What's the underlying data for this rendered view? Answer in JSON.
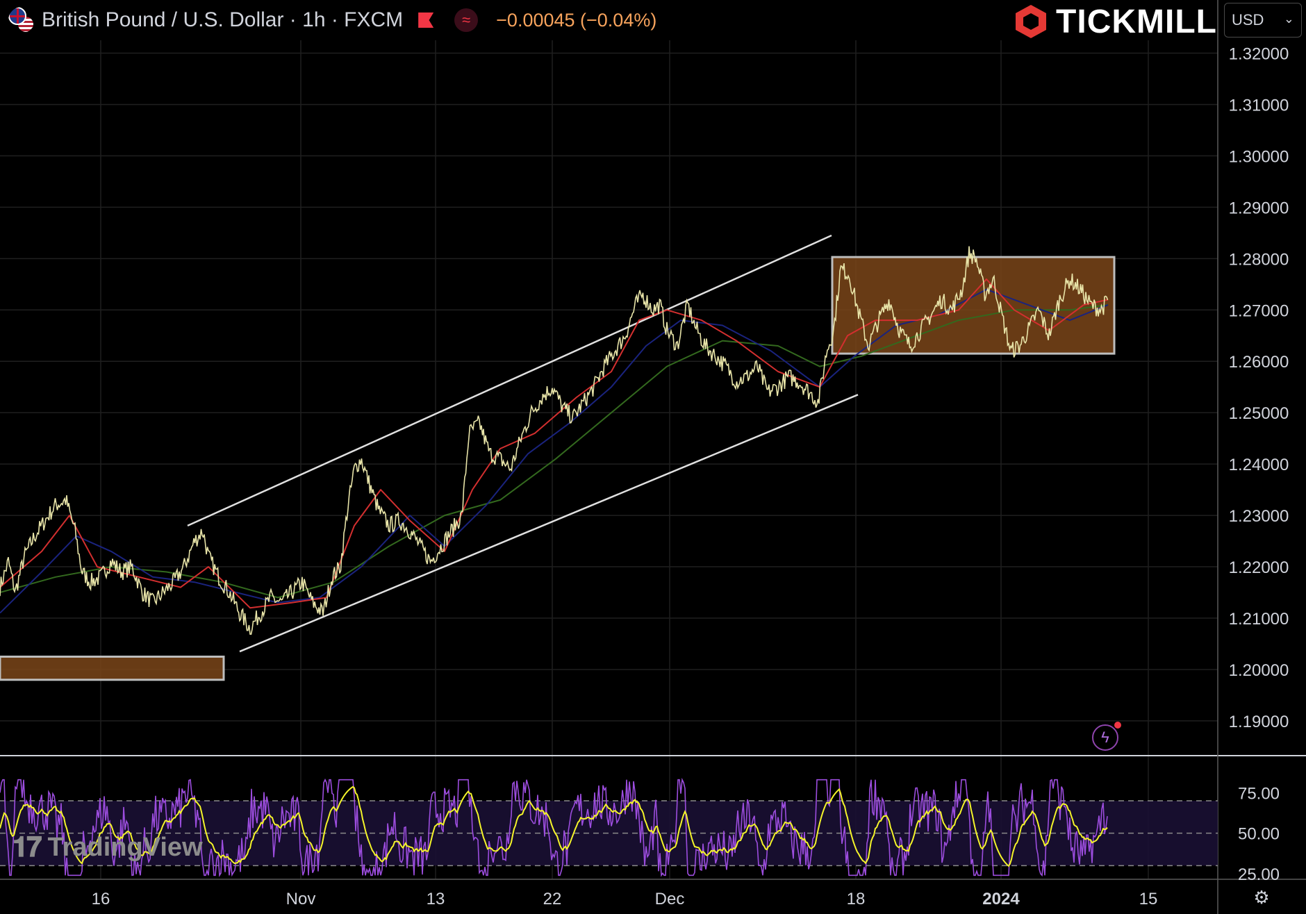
{
  "header": {
    "symbol_title": "British Pound / U.S. Dollar · 1h · FXCM",
    "change_text": "−0.00045 (−0.04%)",
    "brand": "TICKMILL",
    "currency": "USD",
    "watermark": "TradingView",
    "flag_icon": "gbp-usd-flag-icon",
    "settings_icon": "gear-icon",
    "alert_icon": "lightning-icon"
  },
  "colors": {
    "background": "#000000",
    "price": "#e8e4a8",
    "ema_fast": "#d32f2f",
    "ema_mid": "#1a237e",
    "ema_slow": "#33691e",
    "box_fill": "#7a4519",
    "box_border": "#bdbdbd",
    "rsi_line": "#9c4dde",
    "rsi_signal": "#f5f52a",
    "change_orange": "#f7a35c"
  },
  "chart_data": [
    {
      "type": "line",
      "title": "British Pound / U.S. Dollar · 1h · FXCM",
      "y_ticks": [
        "1.32000",
        "1.31000",
        "1.30000",
        "1.29000",
        "1.28000",
        "1.27000",
        "1.26000",
        "1.25000",
        "1.24000",
        "1.23000",
        "1.22000",
        "1.21000",
        "1.20000",
        "1.19000"
      ],
      "ylim": [
        1.1835,
        1.3225
      ],
      "x_ticks": [
        "16",
        "Nov",
        "13",
        "22",
        "Dec",
        "18",
        "2024",
        "15"
      ],
      "grid": true,
      "series": [
        {
          "name": "",
          "role": "price",
          "points": [
            [
              0,
              1.216
            ],
            [
              12,
              1.221
            ],
            [
              22,
              1.215
            ],
            [
              35,
              1.222
            ],
            [
              50,
              1.226
            ],
            [
              65,
              1.229
            ],
            [
              80,
              1.232
            ],
            [
              95,
              1.233
            ],
            [
              108,
              1.227
            ],
            [
              118,
              1.219
            ],
            [
              130,
              1.217
            ],
            [
              145,
              1.218
            ],
            [
              160,
              1.221
            ],
            [
              175,
              1.219
            ],
            [
              190,
              1.22
            ],
            [
              205,
              1.215
            ],
            [
              220,
              1.213
            ],
            [
              235,
              1.215
            ],
            [
              250,
              1.217
            ],
            [
              265,
              1.22
            ],
            [
              280,
              1.225
            ],
            [
              292,
              1.227
            ],
            [
              300,
              1.222
            ],
            [
              315,
              1.218
            ],
            [
              330,
              1.215
            ],
            [
              345,
              1.211
            ],
            [
              360,
              1.208
            ],
            [
              375,
              1.211
            ],
            [
              390,
              1.214
            ],
            [
              405,
              1.213
            ],
            [
              420,
              1.215
            ],
            [
              435,
              1.217
            ],
            [
              450,
              1.213
            ],
            [
              465,
              1.211
            ],
            [
              478,
              1.218
            ],
            [
              490,
              1.22
            ],
            [
              500,
              1.231
            ],
            [
              510,
              1.239
            ],
            [
              520,
              1.241
            ],
            [
              532,
              1.236
            ],
            [
              545,
              1.231
            ],
            [
              560,
              1.228
            ],
            [
              575,
              1.229
            ],
            [
              590,
              1.227
            ],
            [
              605,
              1.224
            ],
            [
              620,
              1.221
            ],
            [
              635,
              1.224
            ],
            [
              650,
              1.227
            ],
            [
              665,
              1.23
            ],
            [
              675,
              1.246
            ],
            [
              690,
              1.248
            ],
            [
              705,
              1.242
            ],
            [
              720,
              1.241
            ],
            [
              735,
              1.239
            ],
            [
              750,
              1.245
            ],
            [
              765,
              1.25
            ],
            [
              780,
              1.253
            ],
            [
              795,
              1.255
            ],
            [
              810,
              1.251
            ],
            [
              825,
              1.249
            ],
            [
              840,
              1.252
            ],
            [
              855,
              1.255
            ],
            [
              870,
              1.259
            ],
            [
              885,
              1.262
            ],
            [
              900,
              1.265
            ],
            [
              915,
              1.271
            ],
            [
              925,
              1.273
            ],
            [
              940,
              1.27
            ],
            [
              950,
              1.271
            ],
            [
              960,
              1.266
            ],
            [
              975,
              1.263
            ],
            [
              990,
              1.271
            ],
            [
              1000,
              1.267
            ],
            [
              1015,
              1.263
            ],
            [
              1030,
              1.261
            ],
            [
              1045,
              1.259
            ],
            [
              1060,
              1.256
            ],
            [
              1075,
              1.257
            ],
            [
              1090,
              1.259
            ],
            [
              1105,
              1.254
            ],
            [
              1120,
              1.255
            ],
            [
              1135,
              1.257
            ],
            [
              1150,
              1.256
            ],
            [
              1165,
              1.254
            ],
            [
              1178,
              1.252
            ],
            [
              1190,
              1.262
            ],
            [
              1200,
              1.266
            ],
            [
              1210,
              1.278
            ],
            [
              1222,
              1.277
            ],
            [
              1235,
              1.27
            ],
            [
              1250,
              1.263
            ],
            [
              1265,
              1.268
            ],
            [
              1280,
              1.272
            ],
            [
              1295,
              1.266
            ],
            [
              1310,
              1.263
            ],
            [
              1325,
              1.266
            ],
            [
              1340,
              1.269
            ],
            [
              1355,
              1.272
            ],
            [
              1370,
              1.27
            ],
            [
              1385,
              1.274
            ],
            [
              1395,
              1.281
            ],
            [
              1405,
              1.28
            ],
            [
              1418,
              1.273
            ],
            [
              1430,
              1.276
            ],
            [
              1442,
              1.269
            ],
            [
              1455,
              1.262
            ],
            [
              1468,
              1.263
            ],
            [
              1480,
              1.266
            ],
            [
              1495,
              1.27
            ],
            [
              1510,
              1.265
            ],
            [
              1525,
              1.272
            ],
            [
              1540,
              1.276
            ],
            [
              1555,
              1.274
            ],
            [
              1570,
              1.271
            ],
            [
              1585,
              1.27
            ],
            [
              1595,
              1.272
            ]
          ]
        },
        {
          "name": "",
          "role": "ema_fast",
          "points": [
            [
              0,
              1.216
            ],
            [
              60,
              1.223
            ],
            [
              100,
              1.23
            ],
            [
              140,
              1.22
            ],
            [
              200,
              1.218
            ],
            [
              260,
              1.216
            ],
            [
              300,
              1.22
            ],
            [
              360,
              1.212
            ],
            [
              420,
              1.213
            ],
            [
              470,
              1.214
            ],
            [
              510,
              1.228
            ],
            [
              548,
              1.235
            ],
            [
              590,
              1.229
            ],
            [
              640,
              1.223
            ],
            [
              680,
              1.235
            ],
            [
              720,
              1.243
            ],
            [
              770,
              1.246
            ],
            [
              830,
              1.253
            ],
            [
              880,
              1.258
            ],
            [
              920,
              1.268
            ],
            [
              960,
              1.27
            ],
            [
              1010,
              1.268
            ],
            [
              1060,
              1.264
            ],
            [
              1120,
              1.258
            ],
            [
              1180,
              1.255
            ],
            [
              1220,
              1.265
            ],
            [
              1260,
              1.268
            ],
            [
              1320,
              1.268
            ],
            [
              1380,
              1.27
            ],
            [
              1420,
              1.276
            ],
            [
              1460,
              1.27
            ],
            [
              1510,
              1.266
            ],
            [
              1560,
              1.271
            ],
            [
              1595,
              1.272
            ]
          ]
        },
        {
          "name": "",
          "role": "ema_mid",
          "points": [
            [
              0,
              1.211
            ],
            [
              60,
              1.219
            ],
            [
              110,
              1.226
            ],
            [
              160,
              1.223
            ],
            [
              220,
              1.218
            ],
            [
              280,
              1.217
            ],
            [
              340,
              1.215
            ],
            [
              400,
              1.213
            ],
            [
              460,
              1.214
            ],
            [
              520,
              1.22
            ],
            [
              590,
              1.23
            ],
            [
              640,
              1.224
            ],
            [
              700,
              1.232
            ],
            [
              760,
              1.242
            ],
            [
              820,
              1.248
            ],
            [
              880,
              1.255
            ],
            [
              930,
              1.263
            ],
            [
              980,
              1.268
            ],
            [
              1040,
              1.267
            ],
            [
              1110,
              1.262
            ],
            [
              1180,
              1.255
            ],
            [
              1230,
              1.261
            ],
            [
              1290,
              1.267
            ],
            [
              1350,
              1.269
            ],
            [
              1420,
              1.274
            ],
            [
              1480,
              1.271
            ],
            [
              1540,
              1.268
            ],
            [
              1595,
              1.271
            ]
          ]
        },
        {
          "name": "",
          "role": "ema_slow",
          "points": [
            [
              0,
              1.215
            ],
            [
              80,
              1.218
            ],
            [
              160,
              1.22
            ],
            [
              240,
              1.219
            ],
            [
              320,
              1.217
            ],
            [
              400,
              1.214
            ],
            [
              480,
              1.217
            ],
            [
              560,
              1.224
            ],
            [
              640,
              1.23
            ],
            [
              720,
              1.233
            ],
            [
              800,
              1.241
            ],
            [
              880,
              1.25
            ],
            [
              960,
              1.259
            ],
            [
              1040,
              1.264
            ],
            [
              1120,
              1.263
            ],
            [
              1180,
              1.259
            ],
            [
              1240,
              1.261
            ],
            [
              1300,
              1.264
            ],
            [
              1380,
              1.268
            ],
            [
              1460,
              1.27
            ],
            [
              1540,
              1.27
            ],
            [
              1595,
              1.271
            ]
          ]
        }
      ],
      "annotations": [
        {
          "kind": "trendline",
          "label": "upper channel",
          "from": [
            270,
            1.228
          ],
          "to": [
            1197,
            1.2845
          ]
        },
        {
          "kind": "trendline",
          "label": "lower channel",
          "from": [
            345,
            1.2035
          ],
          "to": [
            1235,
            1.2535
          ]
        },
        {
          "kind": "range_box",
          "label": "consolidation",
          "x": [
            1198,
            1604
          ],
          "y": [
            1.2615,
            1.2803
          ]
        },
        {
          "kind": "range_box",
          "label": "support zone",
          "x": [
            0,
            322
          ],
          "y": [
            1.198,
            1.2025
          ]
        }
      ]
    },
    {
      "type": "line",
      "title": "RSI",
      "y_ticks": [
        "75.00",
        "50.00",
        "25.00"
      ],
      "ylim": [
        22,
        97
      ],
      "bands": [
        70,
        30
      ],
      "series": [
        {
          "name": "",
          "role": "rsi",
          "amplitude": "high"
        },
        {
          "name": "",
          "role": "rsi_signal",
          "amplitude": "smooth"
        }
      ]
    }
  ]
}
